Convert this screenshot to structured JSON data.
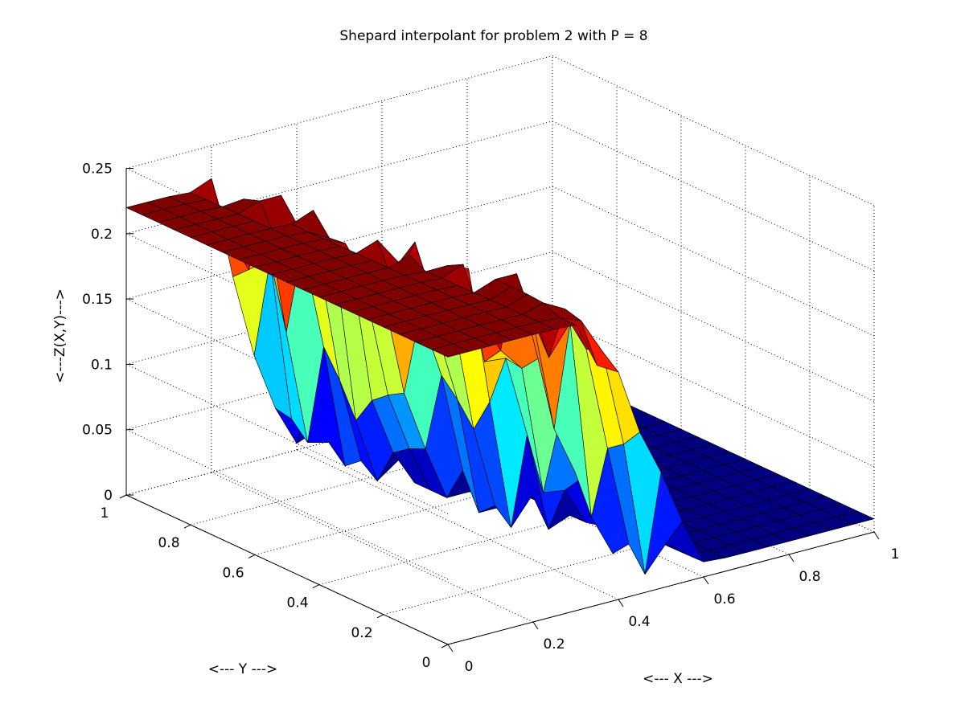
{
  "chart_data": {
    "type": "surface",
    "title": "Shepard interpolant for problem 2 with P = 8",
    "xlabel": "<--- X --->",
    "ylabel": "<--- Y --->",
    "zlabel": "<---Z(X,Y)--->",
    "xlim": [
      0,
      1
    ],
    "ylim": [
      0,
      1
    ],
    "zlim": [
      0,
      0.25
    ],
    "xticks": [
      0,
      0.2,
      0.4,
      0.6,
      0.8,
      1
    ],
    "yticks": [
      0,
      0.2,
      0.4,
      0.6,
      0.8,
      1
    ],
    "zticks": [
      0,
      0.05,
      0.1,
      0.15,
      0.2,
      0.25
    ],
    "xtick_labels": [
      "0",
      "0.2",
      "0.4",
      "0.6",
      "0.8",
      "1"
    ],
    "ytick_labels": [
      "0",
      "0.2",
      "0.4",
      "0.6",
      "0.8",
      "1"
    ],
    "ztick_labels": [
      "0",
      "0.05",
      "0.1",
      "0.15",
      "0.2",
      "0.25"
    ],
    "grid": true,
    "colormap": "jet",
    "z_plateau_high": 0.22,
    "z_plateau_low": 0.01,
    "transition_x_range": [
      0.28,
      0.45
    ],
    "grid_size": [
      21,
      21
    ]
  }
}
